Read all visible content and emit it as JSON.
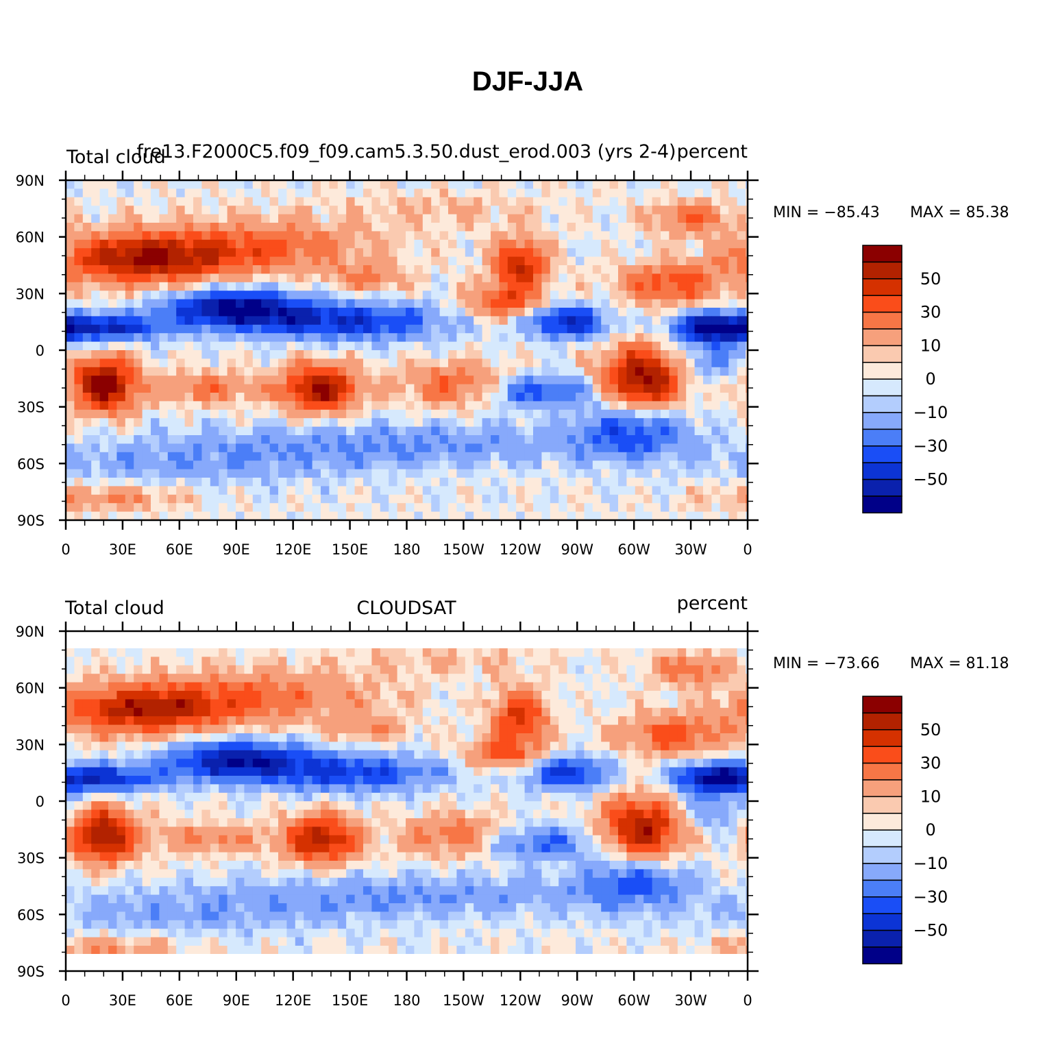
{
  "figure": {
    "title": "DJF-JJA"
  },
  "panels": [
    {
      "left_label": "Total cloud",
      "center_label": "fre13.F2000C5.f09_f09.cam5.3.50.dust_erod.003 (yrs 2-4)",
      "right_label": "percent",
      "min_label": "MIN = −85.43",
      "max_label": "MAX =   85.38",
      "min": -85.43,
      "max": 85.38
    },
    {
      "left_label": "Total cloud",
      "center_label": "CLOUDSAT",
      "right_label": "percent",
      "min_label": "MIN = −73.66",
      "max_label": "MAX =   81.18",
      "min": -73.66,
      "max": 81.18
    }
  ],
  "axes": {
    "lat_ticks": [
      "90N",
      "60N",
      "30N",
      "0",
      "30S",
      "60S",
      "90S"
    ],
    "lon_ticks": [
      "0",
      "30E",
      "60E",
      "90E",
      "120E",
      "150E",
      "180",
      "150W",
      "120W",
      "90W",
      "60W",
      "30W",
      "0"
    ]
  },
  "colorbar": {
    "levels": [
      -60,
      -50,
      -40,
      -30,
      -20,
      -10,
      -5,
      0,
      5,
      10,
      20,
      30,
      40,
      50,
      60
    ],
    "tick_labels": [
      "50",
      "30",
      "10",
      "0",
      "−10",
      "−30",
      "−50"
    ],
    "colors": [
      "#8b0000",
      "#b22200",
      "#d53100",
      "#fa4d1a",
      "#f77646",
      "#f6a07c",
      "#facab0",
      "#fdeadb",
      "#d6e9fd",
      "#b3cdfd",
      "#87a9fb",
      "#4b7ef7",
      "#1a4ef6",
      "#0c34d5",
      "#0a21ad",
      "#000088"
    ]
  }
}
